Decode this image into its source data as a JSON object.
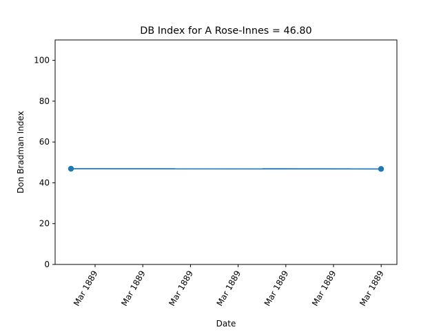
{
  "chart_data": {
    "type": "line",
    "title": "DB Index for A Rose-Innes = 46.80",
    "xlabel": "Date",
    "ylabel": "Don Bradman Index",
    "ylim": [
      0,
      110
    ],
    "yticks": [
      0,
      20,
      40,
      60,
      80,
      100
    ],
    "xtick_labels": [
      "Mar 1889",
      "Mar 1889",
      "Mar 1889",
      "Mar 1889",
      "Mar 1889",
      "Mar 1889",
      "Mar 1889"
    ],
    "grid": false,
    "series": [
      {
        "color": "#1f77b4",
        "points": [
          {
            "x": "Mar 1889",
            "y": 46.9
          },
          {
            "x": "Mar 1889",
            "y": 46.8
          }
        ]
      }
    ]
  }
}
